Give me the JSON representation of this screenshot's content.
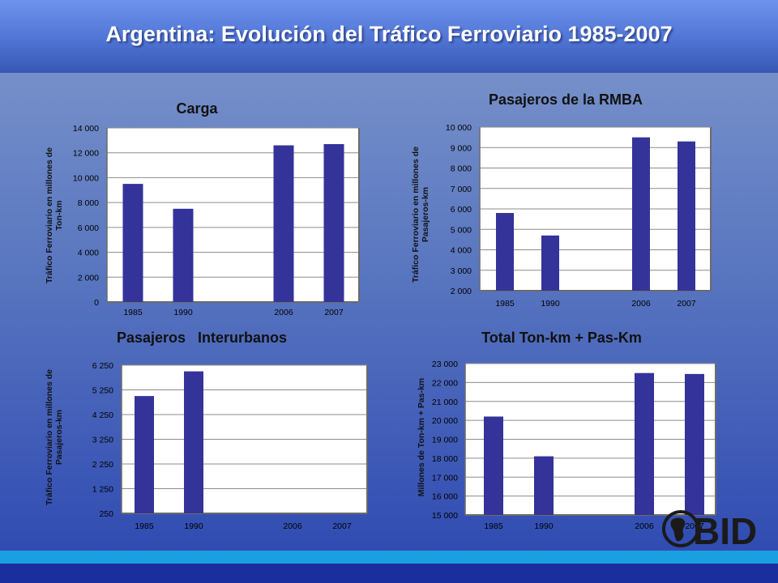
{
  "title": "Argentina: Evolución del Tráfico Ferroviario 1985-2007",
  "logo": {
    "text": "BID",
    "color": "#1a1a1a"
  },
  "colors": {
    "bar": "#333399",
    "grid": "#8c8c8c",
    "plot_bg": "#ffffff",
    "axis_text": "#000000"
  },
  "chart_data": [
    {
      "type": "bar",
      "title": "Carga",
      "ylabel": "Tráfico Ferroviario en millones de Ton-km",
      "xlabel": "",
      "categories": [
        "1985",
        "1990",
        "",
        "2006",
        "2007"
      ],
      "values": [
        9500,
        7500,
        null,
        12600,
        12700
      ],
      "ylim": [
        0,
        14000
      ],
      "yticks": [
        0,
        2000,
        4000,
        6000,
        8000,
        10000,
        12000,
        14000
      ],
      "ytick_labels": [
        "0",
        "2 000",
        "4 000",
        "6 000",
        "8 000",
        "10 000",
        "12 000",
        "14 000"
      ],
      "grid": true,
      "legend": "none"
    },
    {
      "type": "bar",
      "title": "Pasajeros de la RMBA",
      "ylabel": "Tráfico Ferroviario en millones de Pasajeros-km",
      "xlabel": "",
      "categories": [
        "1985",
        "1990",
        "",
        "2006",
        "2007"
      ],
      "values": [
        5800,
        4700,
        null,
        9500,
        9300
      ],
      "ylim": [
        2000,
        10000
      ],
      "yticks": [
        2000,
        3000,
        4000,
        5000,
        6000,
        7000,
        8000,
        9000,
        10000
      ],
      "ytick_labels": [
        "2 000",
        "3 000",
        "4 000",
        "5 000",
        "6 000",
        "7 000",
        "8 000",
        "9 000",
        "10 000"
      ],
      "grid": true,
      "legend": "none"
    },
    {
      "type": "bar",
      "title": "Pasajeros   Interurbanos",
      "ylabel": "Tráfico Ferroviario en millones de Pasajeros-km",
      "xlabel": "",
      "categories": [
        "1985",
        "1990",
        "",
        "2006",
        "2007"
      ],
      "values": [
        5000,
        6000,
        null,
        null,
        null
      ],
      "ylim": [
        250,
        6250
      ],
      "yticks": [
        250,
        1250,
        2250,
        3250,
        4250,
        5250,
        6250
      ],
      "ytick_labels": [
        "250",
        "1 250",
        "2 250",
        "3 250",
        "4 250",
        "5 250",
        "6 250"
      ],
      "grid": true,
      "legend": "none"
    },
    {
      "type": "bar",
      "title": "Total Ton-km + Pas-Km",
      "ylabel": "Millones de Ton-km + Pas-km",
      "xlabel": "",
      "categories": [
        "1985",
        "1990",
        "",
        "2006",
        "2007"
      ],
      "values": [
        20200,
        18100,
        null,
        22500,
        22450
      ],
      "ylim": [
        15000,
        23000
      ],
      "yticks": [
        15000,
        16000,
        17000,
        18000,
        19000,
        20000,
        21000,
        22000,
        23000
      ],
      "ytick_labels": [
        "15 000",
        "16 000",
        "17 000",
        "18 000",
        "19 000",
        "20 000",
        "21 000",
        "22 000",
        "23 000"
      ],
      "grid": true,
      "legend": "none"
    }
  ]
}
